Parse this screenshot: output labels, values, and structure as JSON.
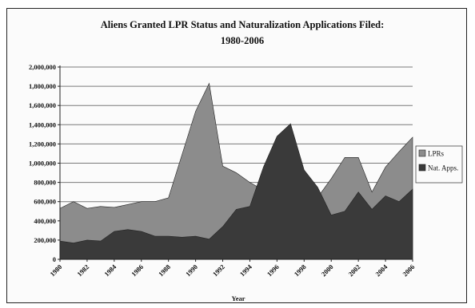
{
  "chart_data": {
    "type": "area",
    "title": "Aliens Granted LPR Status and Naturalization Applications Filed:",
    "subtitle": "1980-2006",
    "xlabel": "Year",
    "ylabel": "",
    "ylim": [
      0,
      2000000
    ],
    "yticks": [
      0,
      200000,
      400000,
      600000,
      800000,
      1000000,
      1200000,
      1400000,
      1600000,
      1800000,
      2000000
    ],
    "ytick_labels": [
      "0",
      "200,000",
      "400,000",
      "600,000",
      "800,000",
      "1,000,000",
      "1,200,000",
      "1,400,000",
      "1,600,000",
      "1,800,000",
      "2,000,000"
    ],
    "xtick_labels": [
      "1980",
      "1982",
      "1984",
      "1986",
      "1988",
      "1990",
      "1992",
      "1994",
      "1996",
      "1998",
      "2000",
      "2002",
      "2004",
      "2006"
    ],
    "x": [
      1980,
      1981,
      1982,
      1983,
      1984,
      1985,
      1986,
      1987,
      1988,
      1989,
      1990,
      1991,
      1992,
      1993,
      1994,
      1995,
      1996,
      1997,
      1998,
      1999,
      2000,
      2001,
      2002,
      2003,
      2004,
      2005,
      2006
    ],
    "grid": true,
    "legend_position": "right",
    "series": [
      {
        "name": "LPRs",
        "color": "#8c8c8c",
        "values": [
          530000,
          600000,
          530000,
          550000,
          540000,
          570000,
          600000,
          600000,
          640000,
          1090000,
          1540000,
          1830000,
          970000,
          900000,
          800000,
          720000,
          915000,
          800000,
          650000,
          645000,
          840000,
          1060000,
          1060000,
          700000,
          960000,
          1120000,
          1270000
        ]
      },
      {
        "name": "Nat. Apps.",
        "color": "#3a3a3a",
        "values": [
          190000,
          170000,
          200000,
          190000,
          290000,
          310000,
          290000,
          240000,
          240000,
          230000,
          240000,
          210000,
          340000,
          520000,
          550000,
          960000,
          1280000,
          1410000,
          930000,
          750000,
          460000,
          500000,
          700000,
          520000,
          660000,
          600000,
          730000
        ]
      }
    ]
  }
}
